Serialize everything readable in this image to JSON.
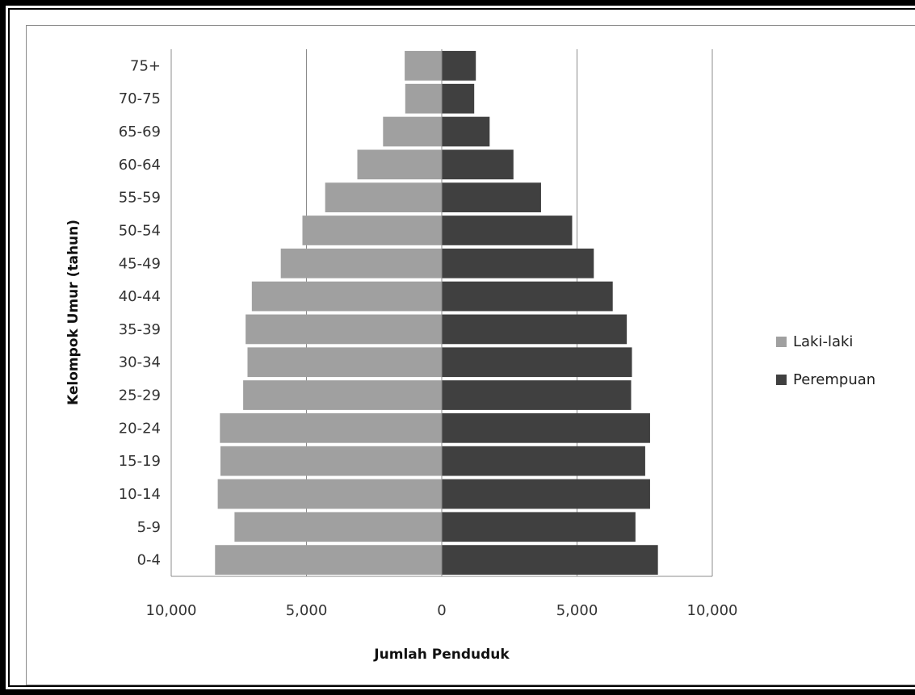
{
  "chart_data": {
    "type": "bar",
    "orientation": "horizontal",
    "categories": [
      "0-4",
      "5-9",
      "10-14",
      "15-19",
      "20-24",
      "25-29",
      "30-34",
      "35-39",
      "40-44",
      "45-49",
      "50-54",
      "55-59",
      "60-64",
      "65-69",
      "70-75",
      "75+"
    ],
    "series": [
      {
        "name": "Laki-laki",
        "color": "#a0a0a0",
        "values": [
          8380,
          7660,
          8280,
          8180,
          8200,
          7340,
          7180,
          7250,
          7020,
          5950,
          5150,
          4310,
          3120,
          2170,
          1350,
          1370
        ]
      },
      {
        "name": "Perempuan",
        "color": "#404040",
        "values": [
          7990,
          7160,
          7700,
          7520,
          7700,
          7000,
          7030,
          6840,
          6320,
          5620,
          4820,
          3670,
          2650,
          1770,
          1200,
          1260
        ]
      }
    ],
    "xlim": [
      -10000,
      10000
    ],
    "x_ticks": [
      -10000,
      -5000,
      0,
      5000,
      10000
    ],
    "x_tick_labels": [
      "10,000",
      "5,000",
      "0",
      "5,000",
      "10,000"
    ],
    "xlabel": "Jumlah Penduduk",
    "ylabel": "Kelompok Umur (tahun)",
    "grid": "vertical",
    "legend_position": "right"
  }
}
